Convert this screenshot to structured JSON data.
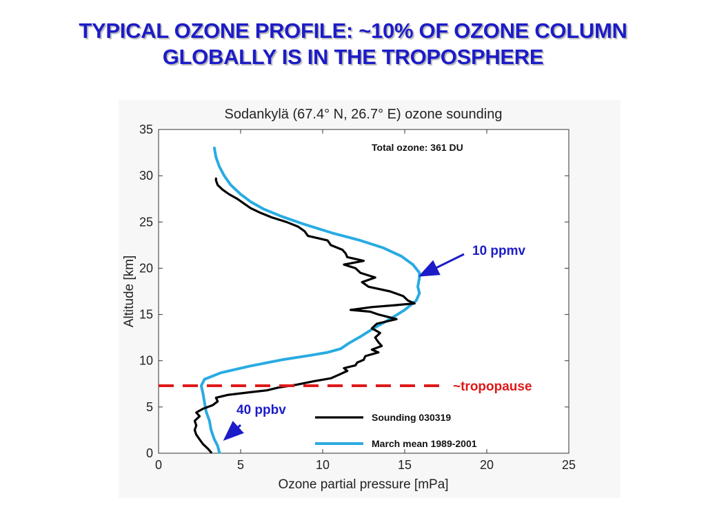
{
  "slide": {
    "title_line1": "TYPICAL OZONE PROFILE: ~10% OF OZONE COLUMN",
    "title_line2": "GLOBALLY IS IN THE TROPOSPHERE"
  },
  "annotations": {
    "ppmv": "10 ppmv",
    "ppbv": "40 ppbv",
    "tropopause": "~tropopause",
    "tropopause_altitude_km": 7.3
  },
  "colors": {
    "title": "#1c1cc8",
    "sounding": "#000000",
    "mean": "#29abe2",
    "tropopause": "#e01818",
    "annotation": "#1c1cc8"
  },
  "chart_data": {
    "type": "line",
    "title": "Sodankylä (67.4° N, 26.7° E)  ozone sounding",
    "xlabel": "Ozone partial pressure [mPa]",
    "ylabel": "Altitude [km]",
    "xlim": [
      0,
      25
    ],
    "ylim": [
      0,
      35
    ],
    "xticks": [
      0,
      5,
      10,
      15,
      20,
      25
    ],
    "yticks": [
      0,
      5,
      10,
      15,
      20,
      25,
      30,
      35
    ],
    "grid": false,
    "inset_text": "Total ozone: 361 DU",
    "legend_position": "bottom-right",
    "series": [
      {
        "name": "Sounding 030319",
        "points": [
          [
            3.2,
            0.1
          ],
          [
            3.0,
            0.5
          ],
          [
            2.7,
            1.0
          ],
          [
            2.5,
            1.5
          ],
          [
            2.3,
            2.0
          ],
          [
            2.2,
            2.5
          ],
          [
            2.3,
            3.0
          ],
          [
            2.2,
            3.5
          ],
          [
            2.5,
            4.0
          ],
          [
            2.3,
            4.4
          ],
          [
            2.7,
            4.8
          ],
          [
            3.3,
            5.2
          ],
          [
            3.6,
            5.6
          ],
          [
            3.5,
            6.0
          ],
          [
            4.2,
            6.3
          ],
          [
            5.6,
            6.6
          ],
          [
            6.6,
            6.8
          ],
          [
            7.3,
            7.1
          ],
          [
            8.4,
            7.4
          ],
          [
            9.5,
            7.8
          ],
          [
            10.5,
            8.1
          ],
          [
            11.0,
            8.5
          ],
          [
            11.5,
            8.9
          ],
          [
            11.3,
            9.2
          ],
          [
            12.0,
            9.5
          ],
          [
            12.1,
            9.8
          ],
          [
            12.5,
            10.1
          ],
          [
            12.6,
            10.5
          ],
          [
            13.4,
            10.9
          ],
          [
            13.0,
            11.2
          ],
          [
            13.6,
            11.6
          ],
          [
            13.4,
            12.0
          ],
          [
            13.2,
            12.5
          ],
          [
            13.5,
            13.0
          ],
          [
            13.0,
            13.5
          ],
          [
            13.3,
            14.0
          ],
          [
            14.5,
            14.5
          ],
          [
            13.4,
            15.0
          ],
          [
            12.9,
            15.3
          ],
          [
            11.7,
            15.5
          ],
          [
            13.0,
            15.8
          ],
          [
            14.4,
            16.0
          ],
          [
            15.6,
            16.2
          ],
          [
            15.2,
            16.5
          ],
          [
            14.9,
            17.0
          ],
          [
            14.1,
            17.5
          ],
          [
            12.8,
            18.0
          ],
          [
            12.4,
            18.5
          ],
          [
            13.2,
            19.0
          ],
          [
            12.3,
            19.5
          ],
          [
            12.0,
            20.0
          ],
          [
            11.3,
            20.4
          ],
          [
            12.5,
            20.8
          ],
          [
            11.5,
            21.2
          ],
          [
            11.4,
            21.6
          ],
          [
            11.2,
            22.0
          ],
          [
            10.5,
            22.5
          ],
          [
            10.3,
            23.0
          ],
          [
            9.1,
            23.5
          ],
          [
            8.9,
            24.0
          ],
          [
            8.5,
            24.5
          ],
          [
            7.8,
            25.0
          ],
          [
            6.9,
            25.5
          ],
          [
            6.2,
            26.0
          ],
          [
            5.6,
            26.5
          ],
          [
            5.2,
            27.0
          ],
          [
            4.8,
            27.5
          ],
          [
            4.3,
            28.0
          ],
          [
            3.9,
            28.5
          ],
          [
            3.6,
            29.0
          ],
          [
            3.5,
            29.5
          ],
          [
            3.5,
            29.7
          ]
        ]
      },
      {
        "name": "March mean 1989-2001",
        "points": [
          [
            3.7,
            0.1
          ],
          [
            3.6,
            0.8
          ],
          [
            3.4,
            1.5
          ],
          [
            3.2,
            2.5
          ],
          [
            3.1,
            3.5
          ],
          [
            2.9,
            4.5
          ],
          [
            2.8,
            5.5
          ],
          [
            2.7,
            6.5
          ],
          [
            2.6,
            7.3
          ],
          [
            2.8,
            8.0
          ],
          [
            3.8,
            8.7
          ],
          [
            5.5,
            9.4
          ],
          [
            7.5,
            10.1
          ],
          [
            9.3,
            10.6
          ],
          [
            10.3,
            10.9
          ],
          [
            11.1,
            11.3
          ],
          [
            11.6,
            11.9
          ],
          [
            12.3,
            12.6
          ],
          [
            13.1,
            13.5
          ],
          [
            14.1,
            14.5
          ],
          [
            15.0,
            15.5
          ],
          [
            15.7,
            16.5
          ],
          [
            15.9,
            17.3
          ],
          [
            15.8,
            18.0
          ],
          [
            15.9,
            19.0
          ],
          [
            15.9,
            19.5
          ],
          [
            15.5,
            20.4
          ],
          [
            14.8,
            21.3
          ],
          [
            13.7,
            22.2
          ],
          [
            12.3,
            23.0
          ],
          [
            10.6,
            23.8
          ],
          [
            8.8,
            24.8
          ],
          [
            7.5,
            25.6
          ],
          [
            6.4,
            26.4
          ],
          [
            5.6,
            27.2
          ],
          [
            5.0,
            28.0
          ],
          [
            4.4,
            29.0
          ],
          [
            4.0,
            30.0
          ],
          [
            3.7,
            31.0
          ],
          [
            3.5,
            32.0
          ],
          [
            3.4,
            33.0
          ]
        ]
      }
    ]
  }
}
